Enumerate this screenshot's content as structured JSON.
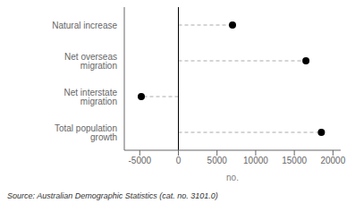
{
  "chart_data": {
    "type": "dot",
    "orientation": "horizontal",
    "categories": [
      "Natural increase",
      "Net overseas migration",
      "Net interstate migration",
      "Total population growth"
    ],
    "values": [
      7000,
      16500,
      -4800,
      18500
    ],
    "xlim": [
      -7000,
      21000
    ],
    "xticks": [
      -5000,
      0,
      5000,
      10000,
      15000,
      20000
    ],
    "xlabel": "no.",
    "annotations": [
      "Source: Australian Demographic Statistics (cat. no. 3101.0)"
    ],
    "color": "#000000",
    "line_style": "dashed",
    "grid": false
  }
}
